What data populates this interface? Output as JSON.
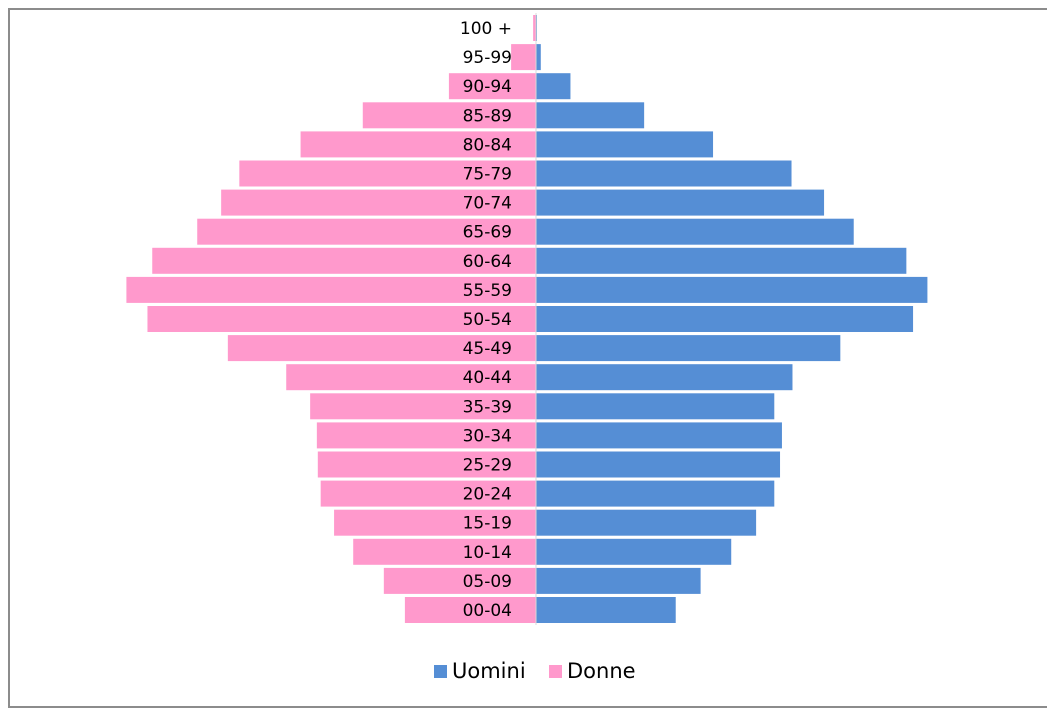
{
  "chart_data": {
    "type": "bar",
    "orientation": "horizontal",
    "layout": "population-pyramid",
    "categories": [
      "00-04",
      "05-09",
      "10-14",
      "15-19",
      "20-24",
      "25-29",
      "30-34",
      "35-39",
      "40-44",
      "45-49",
      "50-54",
      "55-59",
      "60-64",
      "65-69",
      "70-74",
      "75-79",
      "80-84",
      "85-89",
      "90-94",
      "95-99",
      "100 +"
    ],
    "series": [
      {
        "name": "Uomini",
        "side": "right",
        "color": "#558ed5",
        "values": [
          146,
          172,
          204,
          230,
          249,
          255,
          257,
          249,
          268,
          318,
          394,
          409,
          387,
          332,
          301,
          267,
          185,
          113,
          36,
          5,
          1
        ]
      },
      {
        "name": "Donne",
        "side": "left",
        "color": "#ff99cc",
        "values": [
          137,
          159,
          191,
          211,
          225,
          228,
          229,
          236,
          261,
          322,
          406,
          428,
          401,
          354,
          329,
          310,
          246,
          181,
          91,
          26,
          3
        ]
      }
    ],
    "legend_position": "bottom-center",
    "grid": false,
    "xlabel": "",
    "ylabel": "",
    "title": ""
  }
}
